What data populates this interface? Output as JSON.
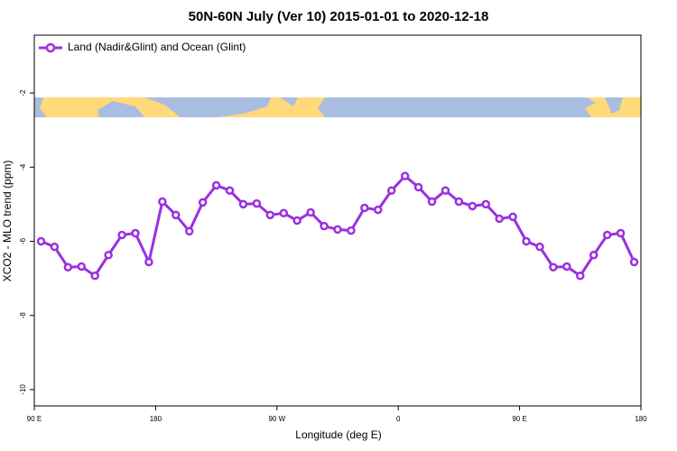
{
  "chart_data": {
    "type": "line",
    "title": "50N-60N July (Ver 10)   2015-01-01 to 2020-12-18",
    "x_label": "Longitude (deg E)",
    "y_label": "XCO2 - MLO trend (ppm)",
    "x": [
      95,
      105,
      115,
      125,
      135,
      145,
      155,
      165,
      175,
      185,
      195,
      205,
      215,
      225,
      235,
      245,
      255,
      265,
      275,
      285,
      295,
      305,
      315,
      325,
      335,
      345,
      355,
      365,
      375,
      385,
      395,
      405,
      415,
      425,
      435,
      445,
      455,
      465,
      475,
      485,
      495,
      505,
      515,
      525,
      535
    ],
    "series": [
      {
        "name": "Land (Nadir&Glint) and Ocean (Glint)",
        "color": "#9b30e0",
        "values": [
          -6.0,
          -6.15,
          -6.7,
          -6.68,
          -6.93,
          -6.37,
          -5.83,
          -5.78,
          -6.56,
          -4.93,
          -5.29,
          -5.73,
          -4.95,
          -4.49,
          -4.63,
          -5.0,
          -4.98,
          -5.29,
          -5.24,
          -5.44,
          -5.22,
          -5.59,
          -5.68,
          -5.71,
          -5.1,
          -5.15,
          -4.63,
          -4.24,
          -4.54,
          -4.93,
          -4.63,
          -4.93,
          -5.05,
          -5.0,
          -5.39,
          -5.34,
          -6.0,
          -6.15,
          -6.7,
          -6.68,
          -6.93,
          -6.37,
          -5.83,
          -5.78,
          -6.56
        ]
      }
    ],
    "xlim": [
      90,
      540
    ],
    "ylim": [
      -10.44,
      -0.44
    ],
    "xticks": [
      {
        "value": 90,
        "label": "90 E"
      },
      {
        "value": 180,
        "label": "180"
      },
      {
        "value": 270,
        "label": "90 W"
      },
      {
        "value": 360,
        "label": "0"
      },
      {
        "value": 450,
        "label": "90 E"
      },
      {
        "value": 540,
        "label": "180"
      }
    ],
    "yticks": [
      -10,
      -8,
      -6,
      -4,
      -2
    ],
    "legend": "top-left"
  }
}
